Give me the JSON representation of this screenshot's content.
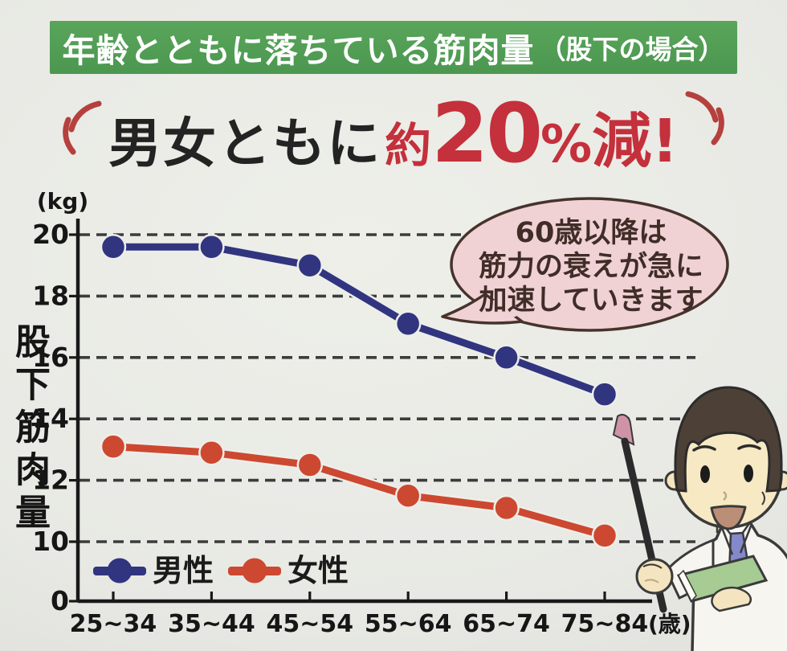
{
  "banner": {
    "title": "年齢とともに落ちている筋肉量",
    "subtitle": "（股下の場合）",
    "bg_color": "#529e54",
    "text_color": "#ffffff"
  },
  "headline": {
    "prefix": "男女ともに",
    "approx": "約",
    "number": "20",
    "percent": "%",
    "suffix": "減!",
    "accent_color": "#c4303b",
    "text_color": "#232323"
  },
  "bubble": {
    "lines": [
      "60歳以降は",
      "筋力の衰えが急に",
      "加速していきます"
    ],
    "fill": "#f0d2d5",
    "border": "#47332c"
  },
  "chart_data": {
    "type": "line",
    "title": "男女ともに約20%減!",
    "categories": [
      "25~34",
      "35~44",
      "45~54",
      "55~64",
      "65~74",
      "75~84"
    ],
    "x_unit": "(歳)",
    "y_unit": "(kg)",
    "ylabel": "股下筋肉量",
    "y_ticks": [
      0,
      10,
      12,
      14,
      16,
      18,
      20
    ],
    "ylim": [
      0,
      20.8
    ],
    "broken_axis_note": "0-10 range compressed at bottom of axis",
    "grid": "dashed horizontal",
    "legend_position": "bottom-left inside plot",
    "series": [
      {
        "key": "male",
        "name": "男性",
        "color": "#31357f",
        "values": [
          19.6,
          19.6,
          19.0,
          17.1,
          16.0,
          14.8
        ]
      },
      {
        "key": "female",
        "name": "女性",
        "color": "#cd4830",
        "values": [
          13.1,
          12.9,
          12.5,
          11.5,
          11.1,
          10.2
        ]
      }
    ]
  },
  "palette": {
    "banner_green": "#529e54",
    "headline_red": "#c4303b",
    "male_blue": "#31357f",
    "female_red": "#cd4830",
    "bubble_pink": "#f0d2d5",
    "bubble_border": "#47332c",
    "paper": "#e8e9e4",
    "grid_gray": "#3c3c3c"
  }
}
